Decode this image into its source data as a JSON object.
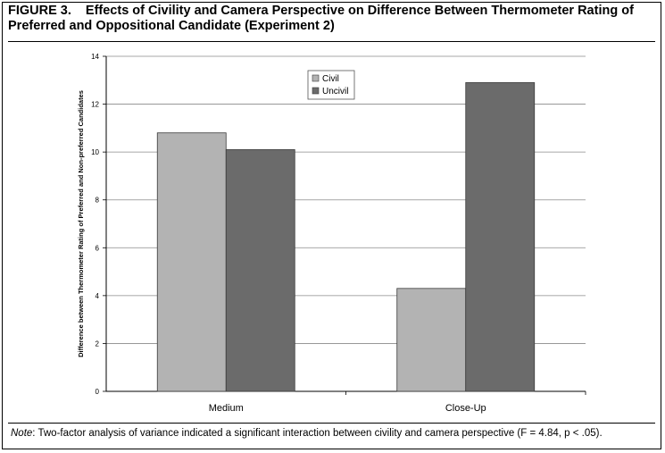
{
  "figure": {
    "label": "FIGURE 3.",
    "title": "Effects of Civility and Camera Perspective on Difference Between Thermometer Rating of Preferred and Oppositional Candidate (Experiment 2)"
  },
  "note": {
    "lead": "Note",
    "text": ": Two-factor analysis of variance indicated a significant interaction between civility and camera perspective (F = 4.84, p < .05)."
  },
  "chart_data": {
    "type": "bar",
    "title": "",
    "xlabel": "",
    "ylabel": "Difference between Thermometer Rating of Preferred and Non-preferred Candidates",
    "categories": [
      "Medium",
      "Close-Up"
    ],
    "series": [
      {
        "name": "Civil",
        "values": [
          10.8,
          4.3
        ],
        "color": "#b3b3b3"
      },
      {
        "name": "Uncivil",
        "values": [
          10.1,
          12.9
        ],
        "color": "#6b6b6b"
      }
    ],
    "ylim": [
      0,
      14
    ],
    "yticks": [
      0,
      2,
      4,
      6,
      8,
      10,
      12,
      14
    ],
    "grid": true,
    "legend": "top-center"
  }
}
